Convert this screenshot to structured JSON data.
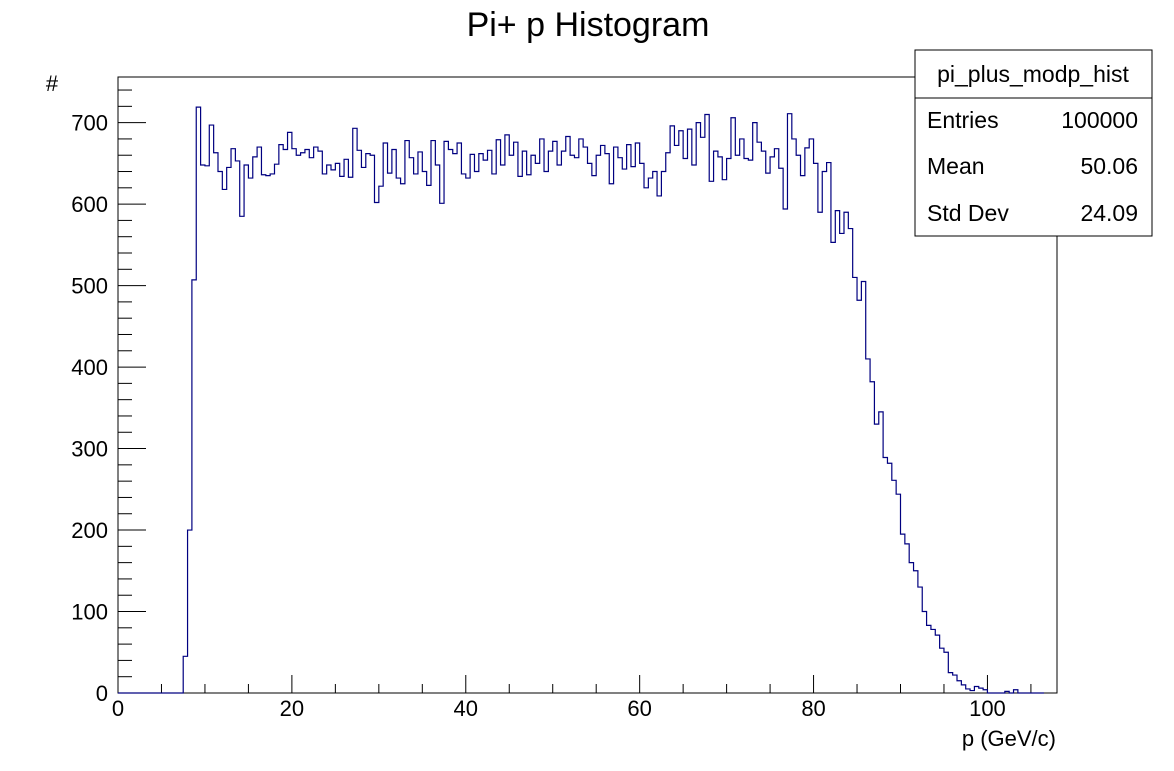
{
  "chart_data": {
    "type": "bar",
    "title": "Pi+ p Histogram",
    "xlabel": "p (GeV/c)",
    "ylabel": "#",
    "xlim": [
      0,
      108
    ],
    "ylim": [
      0,
      756
    ],
    "x_ticks": [
      0,
      20,
      40,
      60,
      80,
      100
    ],
    "y_ticks": [
      0,
      100,
      200,
      300,
      400,
      500,
      600,
      700
    ],
    "bin_width": 0.5,
    "color": "#000080",
    "stats": {
      "name": "pi_plus_modp_hist",
      "rows": [
        {
          "label": "Entries",
          "value": "100000"
        },
        {
          "label": "Mean",
          "value": "50.06"
        },
        {
          "label": "Std Dev",
          "value": "24.09"
        }
      ]
    },
    "values": [
      0,
      0,
      0,
      0,
      0,
      0,
      0,
      0,
      0,
      0,
      0,
      0,
      0,
      0,
      0,
      45,
      200,
      507,
      719,
      648,
      647,
      697,
      663,
      640,
      618,
      645,
      668,
      653,
      585,
      648,
      632,
      658,
      670,
      636,
      635,
      637,
      649,
      673,
      667,
      688,
      668,
      660,
      663,
      667,
      657,
      670,
      665,
      637,
      648,
      642,
      650,
      634,
      655,
      633,
      693,
      666,
      645,
      662,
      660,
      602,
      622,
      675,
      638,
      667,
      632,
      625,
      678,
      657,
      637,
      664,
      640,
      623,
      678,
      648,
      601,
      677,
      667,
      662,
      675,
      637,
      632,
      661,
      640,
      662,
      654,
      666,
      637,
      679,
      648,
      685,
      660,
      676,
      634,
      665,
      636,
      660,
      650,
      680,
      640,
      665,
      677,
      648,
      665,
      683,
      660,
      657,
      680,
      670,
      650,
      635,
      660,
      672,
      662,
      625,
      670,
      657,
      643,
      673,
      646,
      675,
      650,
      620,
      632,
      640,
      610,
      640,
      663,
      696,
      672,
      690,
      656,
      692,
      648,
      700,
      682,
      710,
      628,
      665,
      658,
      630,
      656,
      706,
      660,
      680,
      656,
      654,
      700,
      676,
      665,
      638,
      658,
      668,
      644,
      594,
      711,
      680,
      660,
      635,
      669,
      680,
      650,
      590,
      640,
      651,
      553,
      592,
      564,
      590,
      570,
      510,
      482,
      505,
      410,
      382,
      330,
      345,
      289,
      282,
      261,
      244,
      195,
      183,
      160,
      150,
      130,
      100,
      83,
      78,
      71,
      55,
      50,
      25,
      22,
      15,
      10,
      5,
      3,
      8,
      6,
      4,
      0,
      0,
      0,
      0,
      2,
      0,
      4,
      0,
      0,
      0,
      0,
      0,
      0
    ]
  }
}
